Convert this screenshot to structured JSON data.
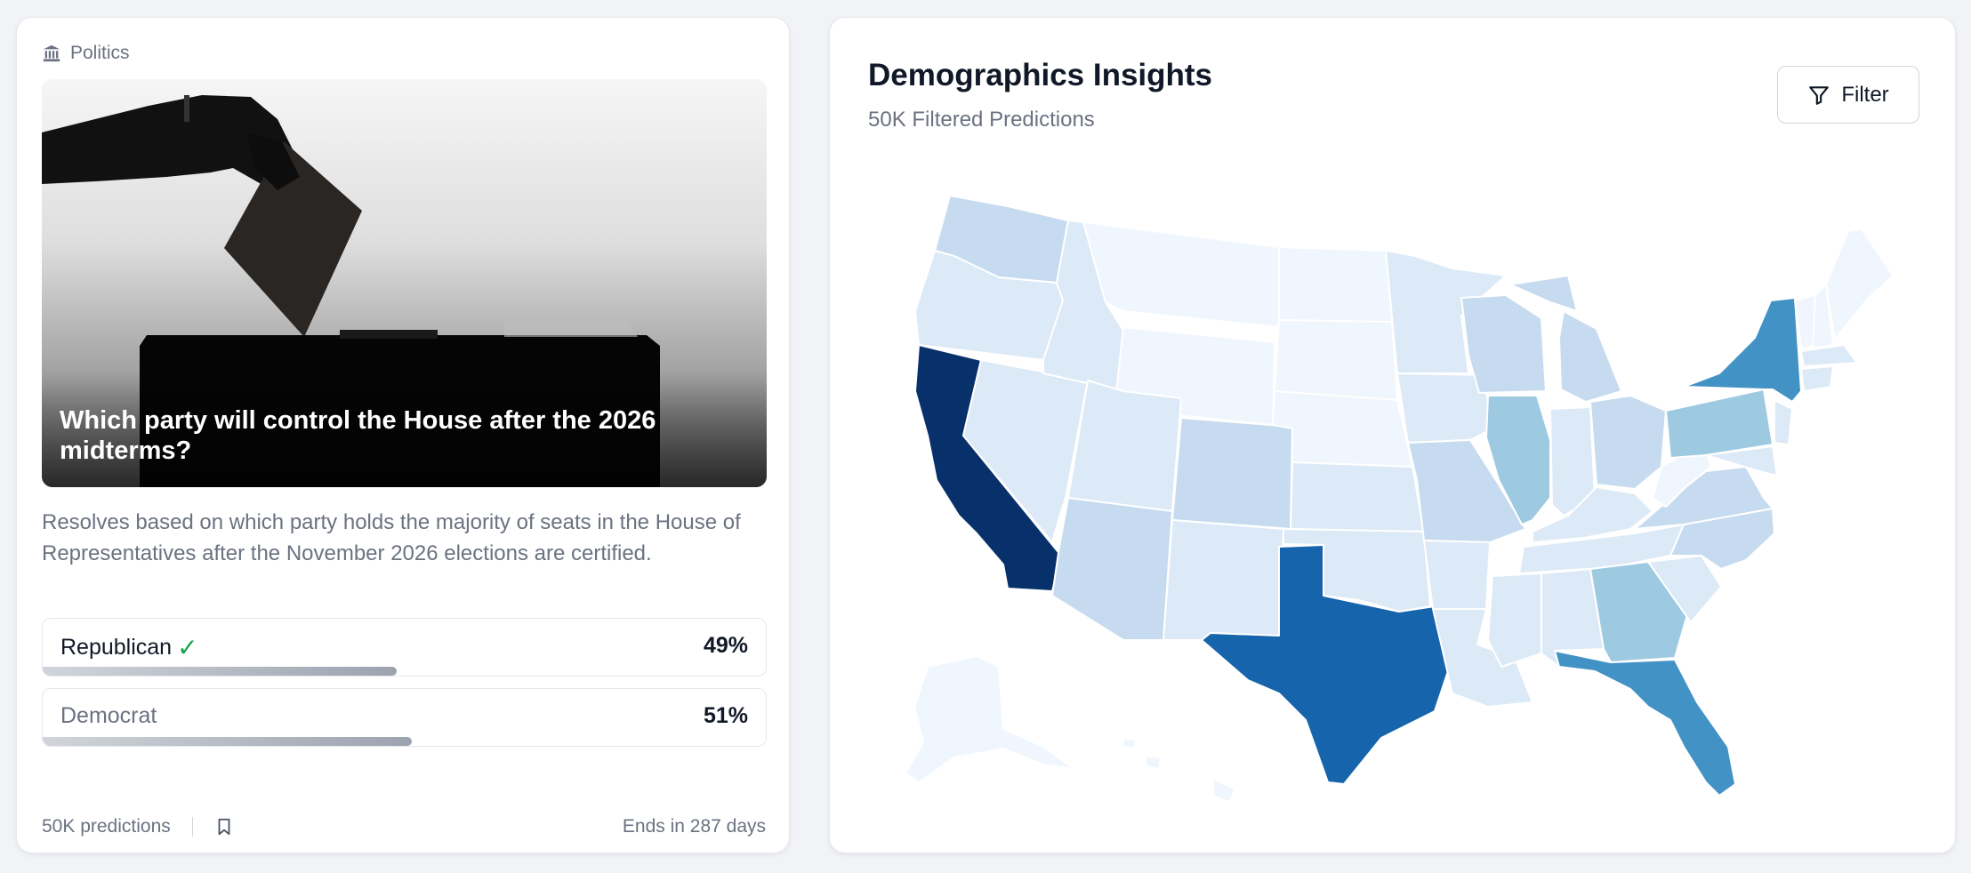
{
  "market": {
    "category": "Politics",
    "category_icon": "bank-icon",
    "title": "Which party will control the House after the 2026 midterms?",
    "description": "Resolves based on which party holds the majority of seats in the House of Representatives after the November 2026 elections are certified.",
    "outcomes": [
      {
        "label": "Republican",
        "percent_label": "49%",
        "fraction": 0.49,
        "selected": true
      },
      {
        "label": "Democrat",
        "percent_label": "51%",
        "fraction": 0.51,
        "selected": false
      }
    ],
    "footer": {
      "predictions": "50K predictions",
      "ends": "Ends in 287 days"
    }
  },
  "demographics": {
    "title": "Demographics Insights",
    "subtitle": "50K Filtered Predictions",
    "filter_label": "Filter",
    "colors": {
      "scale": [
        "#eff6fd",
        "#dce9f6",
        "#c6dbef",
        "#9ecae1",
        "#4292c6",
        "#1664ab",
        "#08306b"
      ]
    }
  }
}
